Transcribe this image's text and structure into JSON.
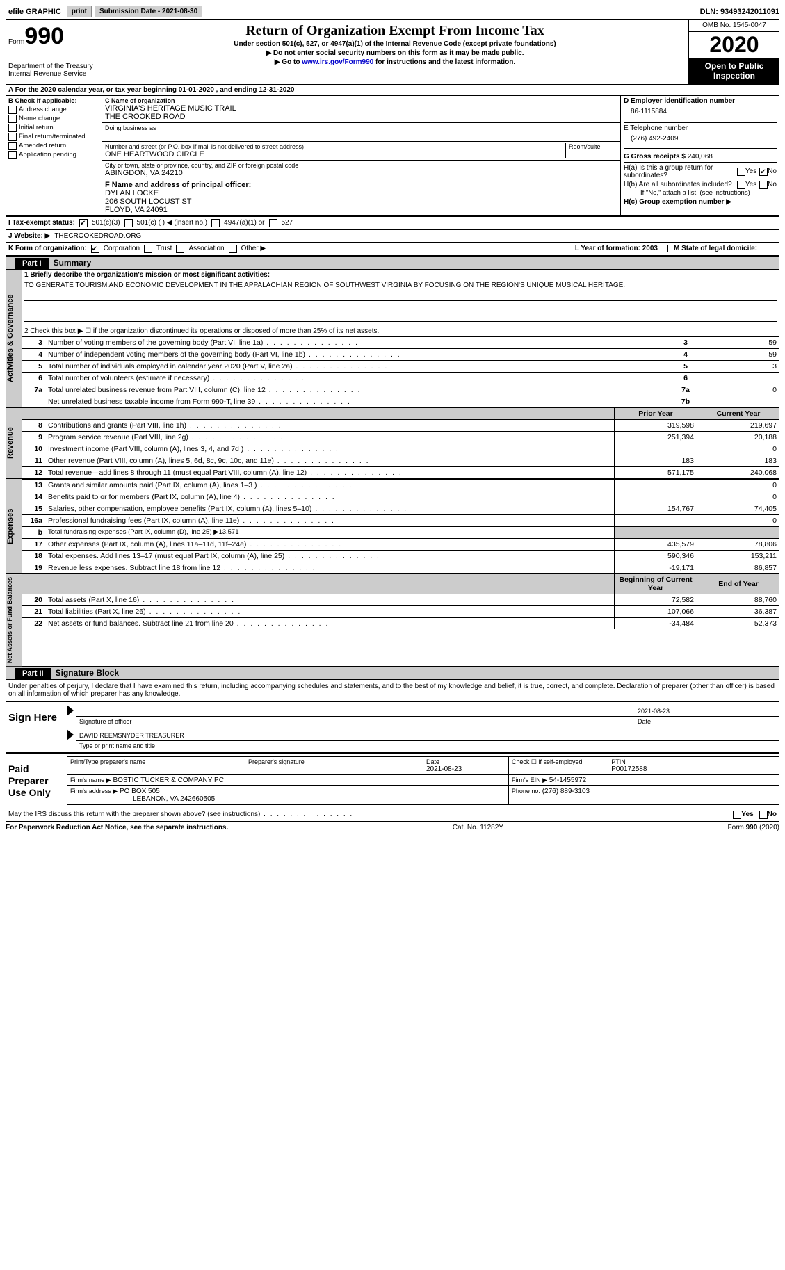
{
  "topbar": {
    "efile": "efile GRAPHIC",
    "print": "print",
    "submission_label": "Submission Date - 2021-08-30",
    "dln_label": "DLN: 93493242011091"
  },
  "header": {
    "form_word": "Form",
    "form_num": "990",
    "dept": "Department of the Treasury\nInternal Revenue Service",
    "title": "Return of Organization Exempt From Income Tax",
    "sub1": "Under section 501(c), 527, or 4947(a)(1) of the Internal Revenue Code (except private foundations)",
    "sub2": "▶ Do not enter social security numbers on this form as it may be made public.",
    "sub3_pre": "▶ Go to ",
    "sub3_link": "www.irs.gov/Form990",
    "sub3_post": " for instructions and the latest information.",
    "omb": "OMB No. 1545-0047",
    "year": "2020",
    "inspection": "Open to Public Inspection"
  },
  "row_a": "A For the 2020 calendar year, or tax year beginning 01-01-2020   , and ending 12-31-2020",
  "box_b": {
    "title": "B Check if applicable:",
    "items": [
      "Address change",
      "Name change",
      "Initial return",
      "Final return/terminated",
      "Amended return",
      "Application pending"
    ]
  },
  "box_c": {
    "label": "C Name of organization",
    "name1": "VIRGINIA'S HERITAGE MUSIC TRAIL",
    "name2": "THE CROOKED ROAD",
    "dba_label": "Doing business as",
    "street_label": "Number and street (or P.O. box if mail is not delivered to street address)",
    "room_label": "Room/suite",
    "street": "ONE HEARTWOOD CIRCLE",
    "city_label": "City or town, state or province, country, and ZIP or foreign postal code",
    "city": "ABINGDON, VA  24210",
    "f_label": "F Name and address of principal officer:",
    "f_name": "DYLAN LOCKE",
    "f_addr1": "206 SOUTH LOCUST ST",
    "f_addr2": "FLOYD, VA  24091"
  },
  "box_right": {
    "d_label": "D Employer identification number",
    "d_val": "86-1115884",
    "e_label": "E Telephone number",
    "e_val": "(276) 492-2409",
    "g_label": "G Gross receipts $",
    "g_val": "240,068",
    "ha_label": "H(a)  Is this a group return for subordinates?",
    "hb_label": "H(b)  Are all subordinates included?",
    "hb_note": "If \"No,\" attach a list. (see instructions)",
    "hc_label": "H(c)  Group exemption number ▶",
    "yes": "Yes",
    "no": "No"
  },
  "row_i": {
    "label": "I   Tax-exempt status:",
    "o1": "501(c)(3)",
    "o2": "501(c) (  ) ◀ (insert no.)",
    "o3": "4947(a)(1) or",
    "o4": "527"
  },
  "row_j": {
    "label": "J   Website: ▶",
    "val": "THECROOKEDROAD.ORG"
  },
  "row_k": {
    "label": "K Form of organization:",
    "o1": "Corporation",
    "o2": "Trust",
    "o3": "Association",
    "o4": "Other ▶",
    "l_label": "L Year of formation: 2003",
    "m_label": "M State of legal domicile:"
  },
  "part1": {
    "num": "Part I",
    "title": "Summary",
    "side_gov": "Activities & Governance",
    "side_rev": "Revenue",
    "side_exp": "Expenses",
    "side_net": "Net Assets or Fund Balances",
    "brief_label": "1  Briefly describe the organization's mission or most significant activities:",
    "brief_text": "TO GENERATE TOURISM AND ECONOMIC DEVELOPMENT IN THE APPALACHIAN REGION OF SOUTHWEST VIRGINIA BY FOCUSING ON THE REGION'S UNIQUE MUSICAL HERITAGE.",
    "line2": "2   Check this box ▶ ☐  if the organization discontinued its operations or disposed of more than 25% of its net assets.",
    "prior_year": "Prior Year",
    "current_year": "Current Year",
    "begin_year": "Beginning of Current Year",
    "end_year": "End of Year",
    "rows_gov": [
      {
        "n": "3",
        "t": "Number of voting members of the governing body (Part VI, line 1a)",
        "b": "3",
        "v": "59"
      },
      {
        "n": "4",
        "t": "Number of independent voting members of the governing body (Part VI, line 1b)",
        "b": "4",
        "v": "59"
      },
      {
        "n": "5",
        "t": "Total number of individuals employed in calendar year 2020 (Part V, line 2a)",
        "b": "5",
        "v": "3"
      },
      {
        "n": "6",
        "t": "Total number of volunteers (estimate if necessary)",
        "b": "6",
        "v": ""
      },
      {
        "n": "7a",
        "t": "Total unrelated business revenue from Part VIII, column (C), line 12",
        "b": "7a",
        "v": "0"
      },
      {
        "n": "",
        "t": "Net unrelated business taxable income from Form 990-T, line 39",
        "b": "7b",
        "v": ""
      }
    ],
    "rows_rev": [
      {
        "n": "8",
        "t": "Contributions and grants (Part VIII, line 1h)",
        "p": "319,598",
        "c": "219,697"
      },
      {
        "n": "9",
        "t": "Program service revenue (Part VIII, line 2g)",
        "p": "251,394",
        "c": "20,188"
      },
      {
        "n": "10",
        "t": "Investment income (Part VIII, column (A), lines 3, 4, and 7d )",
        "p": "",
        "c": "0"
      },
      {
        "n": "11",
        "t": "Other revenue (Part VIII, column (A), lines 5, 6d, 8c, 9c, 10c, and 11e)",
        "p": "183",
        "c": "183"
      },
      {
        "n": "12",
        "t": "Total revenue—add lines 8 through 11 (must equal Part VIII, column (A), line 12)",
        "p": "571,175",
        "c": "240,068"
      }
    ],
    "rows_exp": [
      {
        "n": "13",
        "t": "Grants and similar amounts paid (Part IX, column (A), lines 1–3 )",
        "p": "",
        "c": "0"
      },
      {
        "n": "14",
        "t": "Benefits paid to or for members (Part IX, column (A), line 4)",
        "p": "",
        "c": "0"
      },
      {
        "n": "15",
        "t": "Salaries, other compensation, employee benefits (Part IX, column (A), lines 5–10)",
        "p": "154,767",
        "c": "74,405"
      },
      {
        "n": "16a",
        "t": "Professional fundraising fees (Part IX, column (A), line 11e)",
        "p": "",
        "c": "0"
      },
      {
        "n": "b",
        "t": "Total fundraising expenses (Part IX, column (D), line 25) ▶13,571",
        "shaded": true
      },
      {
        "n": "17",
        "t": "Other expenses (Part IX, column (A), lines 11a–11d, 11f–24e)",
        "p": "435,579",
        "c": "78,806"
      },
      {
        "n": "18",
        "t": "Total expenses. Add lines 13–17 (must equal Part IX, column (A), line 25)",
        "p": "590,346",
        "c": "153,211"
      },
      {
        "n": "19",
        "t": "Revenue less expenses. Subtract line 18 from line 12",
        "p": "-19,171",
        "c": "86,857"
      }
    ],
    "rows_net": [
      {
        "n": "20",
        "t": "Total assets (Part X, line 16)",
        "p": "72,582",
        "c": "88,760"
      },
      {
        "n": "21",
        "t": "Total liabilities (Part X, line 26)",
        "p": "107,066",
        "c": "36,387"
      },
      {
        "n": "22",
        "t": "Net assets or fund balances. Subtract line 21 from line 20",
        "p": "-34,484",
        "c": "52,373"
      }
    ]
  },
  "part2": {
    "num": "Part II",
    "title": "Signature Block",
    "declaration": "Under penalties of perjury, I declare that I have examined this return, including accompanying schedules and statements, and to the best of my knowledge and belief, it is true, correct, and complete. Declaration of preparer (other than officer) is based on all information of which preparer has any knowledge.",
    "sign_here": "Sign Here",
    "sig_date": "2021-08-23",
    "sig_officer_label": "Signature of officer",
    "date_label": "Date",
    "officer_name": "DAVID REEMSNYDER  TREASURER",
    "officer_type_label": "Type or print name and title",
    "paid_prep": "Paid Preparer Use Only",
    "pt_name_label": "Print/Type preparer's name",
    "pp_sig_label": "Preparer's signature",
    "pp_date_label": "Date",
    "pp_date": "2021-08-23",
    "check_if": "Check ☐ if self-employed",
    "ptin_label": "PTIN",
    "ptin": "P00172588",
    "firm_name_label": "Firm's name   ▶",
    "firm_name": "BOSTIC TUCKER & COMPANY PC",
    "firm_ein_label": "Firm's EIN ▶",
    "firm_ein": "54-1455972",
    "firm_addr_label": "Firm's address ▶",
    "firm_addr1": "PO BOX 505",
    "firm_addr2": "LEBANON, VA  242660505",
    "phone_label": "Phone no.",
    "phone": "(276) 889-3103",
    "discuss": "May the IRS discuss this return with the preparer shown above? (see instructions)"
  },
  "footer": {
    "left": "For Paperwork Reduction Act Notice, see the separate instructions.",
    "mid": "Cat. No. 11282Y",
    "right": "Form 990 (2020)"
  }
}
